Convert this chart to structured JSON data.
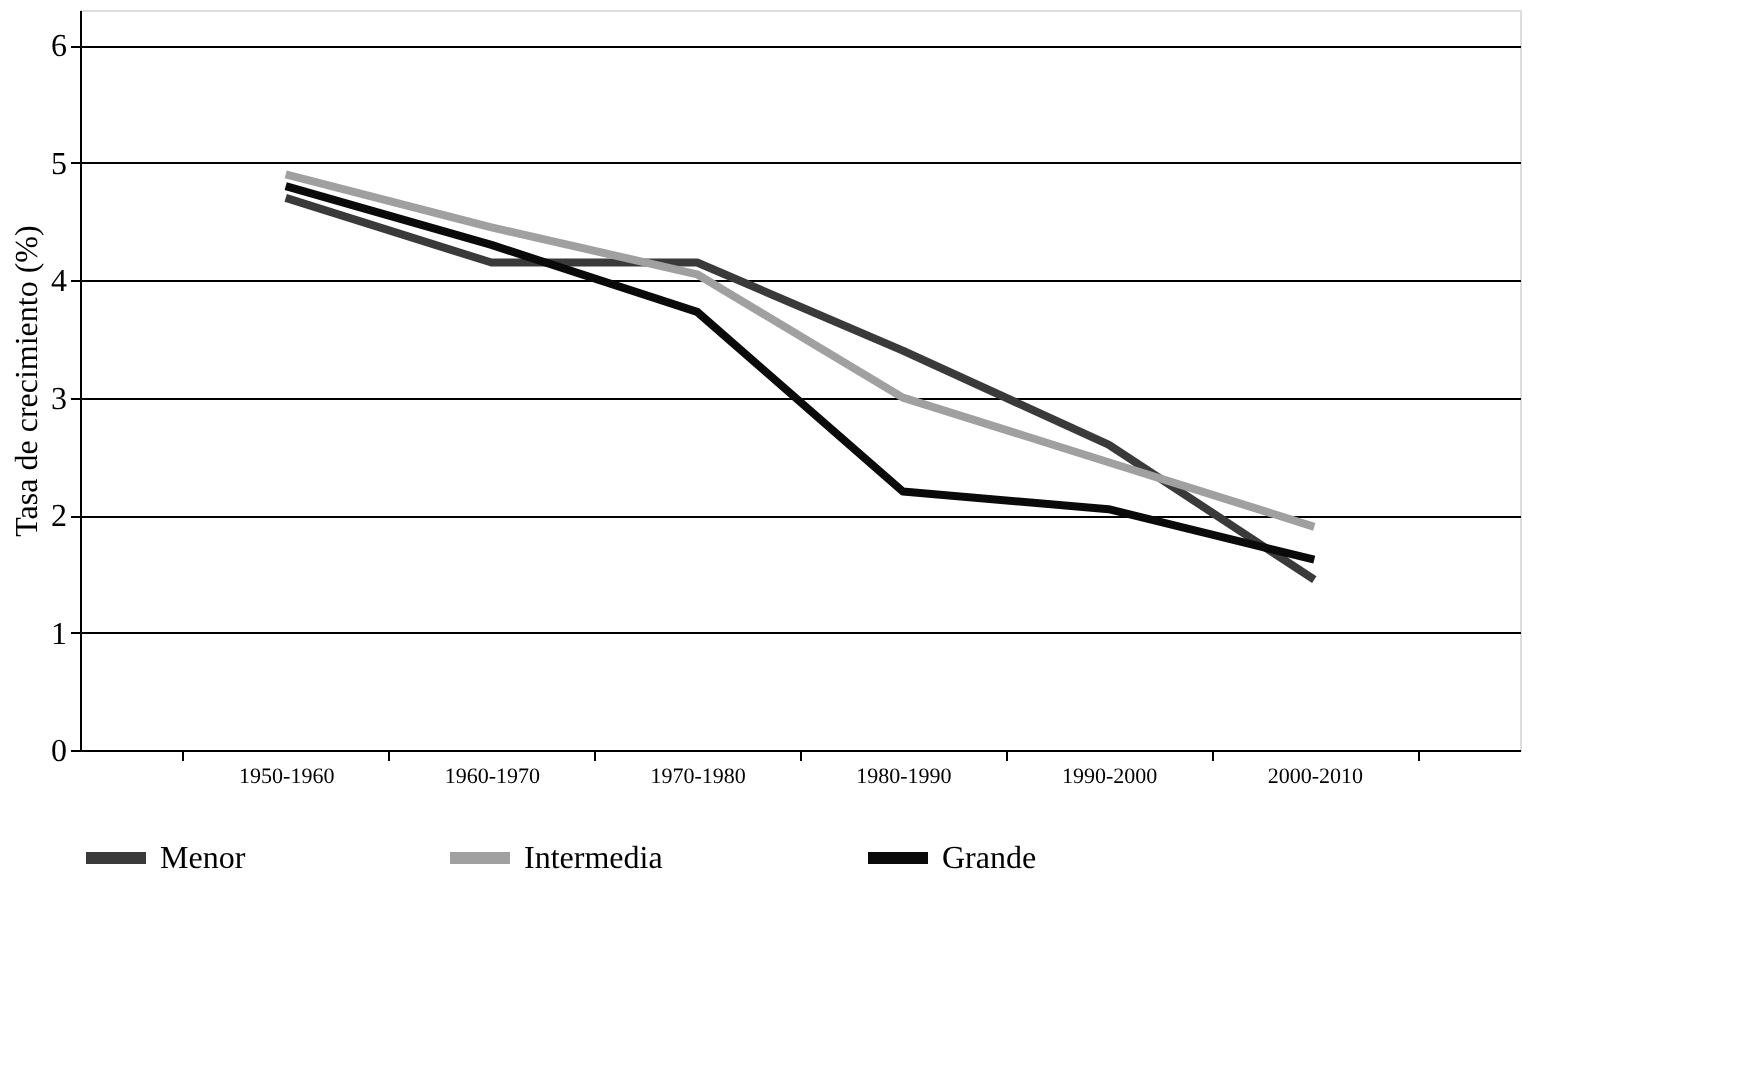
{
  "chart_data": {
    "type": "line",
    "ylabel": "Tasa de crecimiento (%)",
    "categories": [
      "1950-1960",
      "1960-1970",
      "1970-1980",
      "1980-1990",
      "1990-2000",
      "2000-2010"
    ],
    "series": [
      {
        "name": "Menor",
        "color": "#3a3a3a",
        "values": [
          4.7,
          4.15,
          4.15,
          3.4,
          2.6,
          1.45
        ]
      },
      {
        "name": "Intermedia",
        "color": "#a0a0a0",
        "values": [
          4.9,
          4.45,
          4.05,
          3.0,
          2.45,
          1.9
        ]
      },
      {
        "name": "Grande",
        "color": "#0a0a0a",
        "values": [
          4.8,
          4.3,
          3.73,
          2.2,
          2.05,
          1.62
        ]
      }
    ],
    "ylim": [
      0,
      6.3
    ],
    "yticks": [
      0,
      1,
      2,
      3,
      4,
      5,
      6
    ],
    "grid": "y",
    "legend": "bottom",
    "marker": "none",
    "line_style": "solid"
  }
}
